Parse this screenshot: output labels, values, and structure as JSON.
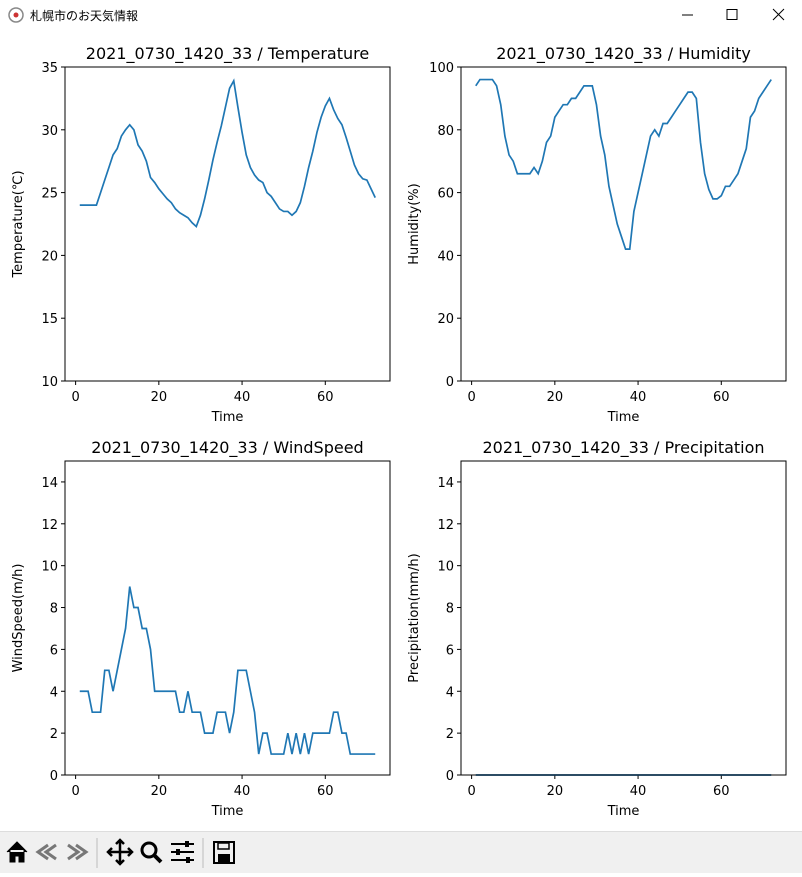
{
  "window": {
    "title": "札幌市のお天気情報"
  },
  "chart_data": [
    {
      "type": "line",
      "title": "2021_0730_1420_33 / Temperature",
      "xlabel": "Time",
      "ylabel": "Temperature(℃)",
      "color": "#1f77b4",
      "xlim": [
        -2.55,
        75.55
      ],
      "xticks": [
        0,
        20,
        40,
        60
      ],
      "ylim": [
        10,
        35
      ],
      "yticks": [
        10,
        15,
        20,
        25,
        30,
        35
      ],
      "x": [
        1,
        2,
        3,
        4,
        5,
        6,
        7,
        8,
        9,
        10,
        11,
        12,
        13,
        14,
        15,
        16,
        17,
        18,
        19,
        20,
        21,
        22,
        23,
        24,
        25,
        26,
        27,
        28,
        29,
        30,
        31,
        32,
        33,
        34,
        35,
        36,
        37,
        38,
        39,
        40,
        41,
        42,
        43,
        44,
        45,
        46,
        47,
        48,
        49,
        50,
        51,
        52,
        53,
        54,
        55,
        56,
        57,
        58,
        59,
        60,
        61,
        62,
        63,
        64,
        65,
        66,
        67,
        68,
        69,
        70,
        71,
        72
      ],
      "values": [
        24,
        24,
        24,
        24,
        24,
        25,
        26,
        27,
        28,
        28.5,
        29.5,
        30,
        30.4,
        30,
        28.8,
        28.3,
        27.5,
        26.2,
        25.8,
        25.3,
        24.9,
        24.5,
        24.2,
        23.7,
        23.4,
        23.2,
        23,
        22.6,
        22.3,
        23.2,
        24.5,
        26,
        27.6,
        29,
        30.3,
        31.8,
        33.3,
        33.9,
        31.8,
        29.8,
        28,
        27,
        26.4,
        26,
        25.8,
        25,
        24.7,
        24.2,
        23.7,
        23.5,
        23.5,
        23.2,
        23.5,
        24.2,
        25.5,
        27,
        28.3,
        29.8,
        31,
        31.9,
        32.5,
        31.6,
        30.9,
        30.4,
        29.4,
        28.3,
        27.2,
        26.5,
        26.1,
        26,
        25.3,
        24.6
      ]
    },
    {
      "type": "line",
      "title": "2021_0730_1420_33 / Humidity",
      "xlabel": "Time",
      "ylabel": "Humidity(%)",
      "color": "#1f77b4",
      "xlim": [
        -2.55,
        75.55
      ],
      "xticks": [
        0,
        20,
        40,
        60
      ],
      "ylim": [
        0,
        100
      ],
      "yticks": [
        0,
        20,
        40,
        60,
        80,
        100
      ],
      "x": [
        1,
        2,
        3,
        4,
        5,
        6,
        7,
        8,
        9,
        10,
        11,
        12,
        13,
        14,
        15,
        16,
        17,
        18,
        19,
        20,
        21,
        22,
        23,
        24,
        25,
        26,
        27,
        28,
        29,
        30,
        31,
        32,
        33,
        34,
        35,
        36,
        37,
        38,
        39,
        40,
        41,
        42,
        43,
        44,
        45,
        46,
        47,
        48,
        49,
        50,
        51,
        52,
        53,
        54,
        55,
        56,
        57,
        58,
        59,
        60,
        61,
        62,
        63,
        64,
        65,
        66,
        67,
        68,
        69,
        70,
        71,
        72
      ],
      "values": [
        94,
        96,
        96,
        96,
        96,
        94,
        88,
        78,
        72,
        70,
        66,
        66,
        66,
        66,
        68,
        66,
        70,
        76,
        78,
        84,
        86,
        88,
        88,
        90,
        90,
        92,
        94,
        94,
        94,
        88,
        78,
        72,
        62,
        56,
        50,
        46,
        42,
        42,
        54,
        60,
        66,
        72,
        78,
        80,
        78,
        82,
        82,
        84,
        86,
        88,
        90,
        92,
        92,
        90,
        76,
        66,
        61,
        58,
        58,
        59,
        62,
        62,
        64,
        66,
        70,
        74,
        84,
        86,
        90,
        92,
        94,
        96
      ]
    },
    {
      "type": "line",
      "title": "2021_0730_1420_33 / WindSpeed",
      "xlabel": "Time",
      "ylabel": "WindSpeed(m/h)",
      "color": "#1f77b4",
      "xlim": [
        -2.55,
        75.55
      ],
      "xticks": [
        0,
        20,
        40,
        60
      ],
      "ylim": [
        0,
        15
      ],
      "yticks": [
        0,
        2,
        4,
        6,
        8,
        10,
        12,
        14
      ],
      "x": [
        1,
        2,
        3,
        4,
        5,
        6,
        7,
        8,
        9,
        10,
        11,
        12,
        13,
        14,
        15,
        16,
        17,
        18,
        19,
        20,
        21,
        22,
        23,
        24,
        25,
        26,
        27,
        28,
        29,
        30,
        31,
        32,
        33,
        34,
        35,
        36,
        37,
        38,
        39,
        40,
        41,
        42,
        43,
        44,
        45,
        46,
        47,
        48,
        49,
        50,
        51,
        52,
        53,
        54,
        55,
        56,
        57,
        58,
        59,
        60,
        61,
        62,
        63,
        64,
        65,
        66,
        67,
        68,
        69,
        70,
        71,
        72
      ],
      "values": [
        4,
        4,
        4,
        3,
        3,
        3,
        5,
        5,
        4,
        5,
        6,
        7,
        9,
        8,
        8,
        7,
        7,
        6,
        4,
        4,
        4,
        4,
        4,
        4,
        3,
        3,
        4,
        3,
        3,
        3,
        2,
        2,
        2,
        3,
        3,
        3,
        2,
        3,
        5,
        5,
        5,
        4,
        3,
        1,
        2,
        2,
        1,
        1,
        1,
        1,
        2,
        1,
        2,
        1,
        2,
        1,
        2,
        2,
        2,
        2,
        2,
        3,
        3,
        2,
        2,
        1,
        1,
        1,
        1,
        1,
        1,
        1
      ]
    },
    {
      "type": "line",
      "title": "2021_0730_1420_33 / Precipitation",
      "xlabel": "Time",
      "ylabel": "Precipitation(mm/h)",
      "color": "#1f77b4",
      "xlim": [
        -2.55,
        75.55
      ],
      "xticks": [
        0,
        20,
        40,
        60
      ],
      "ylim": [
        0,
        15
      ],
      "yticks": [
        0,
        2,
        4,
        6,
        8,
        10,
        12,
        14
      ],
      "x": [
        1,
        2,
        3,
        4,
        5,
        6,
        7,
        8,
        9,
        10,
        11,
        12,
        13,
        14,
        15,
        16,
        17,
        18,
        19,
        20,
        21,
        22,
        23,
        24,
        25,
        26,
        27,
        28,
        29,
        30,
        31,
        32,
        33,
        34,
        35,
        36,
        37,
        38,
        39,
        40,
        41,
        42,
        43,
        44,
        45,
        46,
        47,
        48,
        49,
        50,
        51,
        52,
        53,
        54,
        55,
        56,
        57,
        58,
        59,
        60,
        61,
        62,
        63,
        64,
        65,
        66,
        67,
        68,
        69,
        70,
        71,
        72
      ],
      "values": [
        0,
        0,
        0,
        0,
        0,
        0,
        0,
        0,
        0,
        0,
        0,
        0,
        0,
        0,
        0,
        0,
        0,
        0,
        0,
        0,
        0,
        0,
        0,
        0,
        0,
        0,
        0,
        0,
        0,
        0,
        0,
        0,
        0,
        0,
        0,
        0,
        0,
        0,
        0,
        0,
        0,
        0,
        0,
        0,
        0,
        0,
        0,
        0,
        0,
        0,
        0,
        0,
        0,
        0,
        0,
        0,
        0,
        0,
        0,
        0,
        0,
        0,
        0,
        0,
        0,
        0,
        0,
        0,
        0,
        0,
        0,
        0
      ]
    }
  ]
}
